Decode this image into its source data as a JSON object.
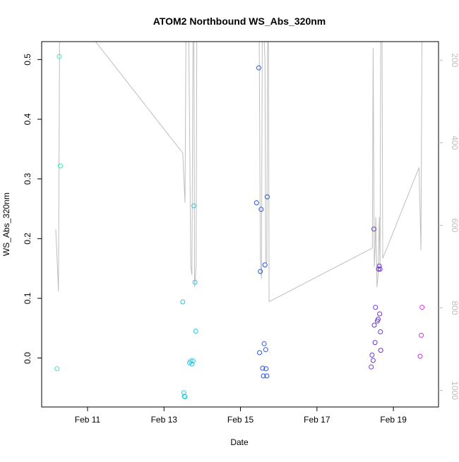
{
  "chart_data": {
    "type": "scatter",
    "title": "ATOM2 Northbound WS_Abs_320nm",
    "xlabel": "Date",
    "ylabel": "WS_Abs_320nm",
    "x_unit": "days",
    "xlim": [
      9.8,
      20.18
    ],
    "ylim": [
      -0.082,
      0.53
    ],
    "y2lim": [
      1040,
      155
    ],
    "grid": false,
    "legend": "none",
    "x_ticks": [
      {
        "value": 11,
        "label": "Feb 11"
      },
      {
        "value": 13,
        "label": "Feb 13"
      },
      {
        "value": 15,
        "label": "Feb 15"
      },
      {
        "value": 17,
        "label": "Feb 17"
      },
      {
        "value": 19,
        "label": "Feb 19"
      }
    ],
    "y_ticks": [
      {
        "value": 0.0,
        "label": "0.0"
      },
      {
        "value": 0.1,
        "label": "0.1"
      },
      {
        "value": 0.2,
        "label": "0.2"
      },
      {
        "value": 0.3,
        "label": "0.3"
      },
      {
        "value": 0.4,
        "label": "0.4"
      },
      {
        "value": 0.5,
        "label": "0.5"
      }
    ],
    "y2_ticks": [
      {
        "value": 200,
        "label": "200"
      },
      {
        "value": 400,
        "label": "400"
      },
      {
        "value": 600,
        "label": "600"
      },
      {
        "value": 800,
        "label": "800"
      },
      {
        "value": 1000,
        "label": "1000"
      }
    ],
    "colors": {
      "axis": "#000000",
      "secondary_axis": "#bebebe",
      "line": "#bebebe"
    },
    "series": [
      {
        "type": "scatter",
        "points": [
          {
            "x": 10.2,
            "y": -0.018,
            "color": "#3ee8b0"
          },
          {
            "x": 10.26,
            "y": 0.505,
            "color": "#3ee8b0"
          },
          {
            "x": 10.29,
            "y": 0.322,
            "color": "#3ee8b0"
          },
          {
            "x": 13.49,
            "y": 0.094,
            "color": "#2ec6e6"
          },
          {
            "x": 13.52,
            "y": -0.058,
            "color": "#2ec6e6"
          },
          {
            "x": 13.53,
            "y": -0.064,
            "color": "#2ec6e6"
          },
          {
            "x": 13.55,
            "y": -0.065,
            "color": "#2ec6e6"
          },
          {
            "x": 13.67,
            "y": -0.008,
            "color": "#2ec6e6"
          },
          {
            "x": 13.7,
            "y": -0.005,
            "color": "#2ec6e6"
          },
          {
            "x": 13.73,
            "y": -0.01,
            "color": "#2ec6e6"
          },
          {
            "x": 13.76,
            "y": -0.005,
            "color": "#2ec6e6"
          },
          {
            "x": 13.78,
            "y": 0.255,
            "color": "#2ec6e6"
          },
          {
            "x": 13.81,
            "y": 0.127,
            "color": "#2ec6e6"
          },
          {
            "x": 13.83,
            "y": 0.045,
            "color": "#2ec6e6"
          },
          {
            "x": 15.42,
            "y": 0.26,
            "color": "#2a55e0"
          },
          {
            "x": 15.48,
            "y": 0.486,
            "color": "#2a55e0"
          },
          {
            "x": 15.5,
            "y": 0.009,
            "color": "#2a55e0"
          },
          {
            "x": 15.52,
            "y": 0.145,
            "color": "#2a55e0"
          },
          {
            "x": 15.54,
            "y": 0.249,
            "color": "#2a55e0"
          },
          {
            "x": 15.58,
            "y": -0.017,
            "color": "#2a55e0"
          },
          {
            "x": 15.6,
            "y": -0.03,
            "color": "#2a55e0"
          },
          {
            "x": 15.62,
            "y": 0.024,
            "color": "#2a55e0"
          },
          {
            "x": 15.64,
            "y": 0.156,
            "color": "#2a55e0"
          },
          {
            "x": 15.66,
            "y": 0.014,
            "color": "#2a55e0"
          },
          {
            "x": 15.67,
            "y": -0.018,
            "color": "#2a55e0"
          },
          {
            "x": 15.69,
            "y": -0.03,
            "color": "#2a55e0"
          },
          {
            "x": 15.7,
            "y": 0.27,
            "color": "#2a55e0"
          },
          {
            "x": 18.42,
            "y": -0.015,
            "color": "#6a35d8"
          },
          {
            "x": 18.44,
            "y": 0.005,
            "color": "#6a35d8"
          },
          {
            "x": 18.47,
            "y": -0.004,
            "color": "#6a35d8"
          },
          {
            "x": 18.49,
            "y": 0.216,
            "color": "#6a35d8"
          },
          {
            "x": 18.5,
            "y": 0.055,
            "color": "#6a35d8"
          },
          {
            "x": 18.52,
            "y": 0.026,
            "color": "#6a35d8"
          },
          {
            "x": 18.53,
            "y": 0.085,
            "color": "#6a35d8"
          },
          {
            "x": 18.58,
            "y": 0.062,
            "color": "#6a35d8"
          },
          {
            "x": 18.6,
            "y": 0.065,
            "color": "#6a35d8"
          },
          {
            "x": 18.61,
            "y": 0.149,
            "color": "#6a35d8"
          },
          {
            "x": 18.63,
            "y": 0.154,
            "color": "#6a35d8"
          },
          {
            "x": 18.64,
            "y": 0.074,
            "color": "#6a35d8"
          },
          {
            "x": 18.65,
            "y": 0.149,
            "color": "#6a35d8"
          },
          {
            "x": 18.66,
            "y": 0.044,
            "color": "#6a35d8"
          },
          {
            "x": 18.67,
            "y": 0.013,
            "color": "#6a35d8"
          },
          {
            "x": 19.7,
            "y": 0.003,
            "color": "#cc33dd"
          },
          {
            "x": 19.73,
            "y": 0.038,
            "color": "#cc33dd"
          },
          {
            "x": 19.75,
            "y": 0.085,
            "color": "#cc33dd"
          }
        ]
      },
      {
        "type": "line",
        "axis": "secondary",
        "color": "#bebebe",
        "points": [
          {
            "x": 10.17,
            "y": 610
          },
          {
            "x": 10.24,
            "y": 760
          },
          {
            "x": 10.27,
            "y": 130
          },
          {
            "x": 10.29,
            "y": 130
          },
          {
            "x": 10.5,
            "y": 130
          },
          {
            "x": 11.0,
            "y": 130
          },
          {
            "x": 13.49,
            "y": 425
          },
          {
            "x": 13.55,
            "y": 545
          },
          {
            "x": 13.58,
            "y": 50
          },
          {
            "x": 13.64,
            "y": 50
          },
          {
            "x": 13.7,
            "y": 700
          },
          {
            "x": 13.73,
            "y": 720
          },
          {
            "x": 13.76,
            "y": 100
          },
          {
            "x": 13.78,
            "y": 100
          },
          {
            "x": 13.8,
            "y": 750
          },
          {
            "x": 13.84,
            "y": 700
          },
          {
            "x": 13.86,
            "y": 100
          },
          {
            "x": 15.42,
            "y": 100
          },
          {
            "x": 15.46,
            "y": 150
          },
          {
            "x": 15.49,
            "y": 150
          },
          {
            "x": 15.52,
            "y": 680
          },
          {
            "x": 15.55,
            "y": 730
          },
          {
            "x": 15.57,
            "y": 150
          },
          {
            "x": 15.6,
            "y": 100
          },
          {
            "x": 15.64,
            "y": 200
          },
          {
            "x": 15.66,
            "y": 690
          },
          {
            "x": 15.69,
            "y": 690
          },
          {
            "x": 15.71,
            "y": 100
          },
          {
            "x": 15.73,
            "y": 100
          },
          {
            "x": 15.75,
            "y": 785
          },
          {
            "x": 18.45,
            "y": 655
          },
          {
            "x": 18.47,
            "y": 170
          },
          {
            "x": 18.5,
            "y": 700
          },
          {
            "x": 18.52,
            "y": 660
          },
          {
            "x": 18.54,
            "y": 580
          },
          {
            "x": 18.57,
            "y": 750
          },
          {
            "x": 18.6,
            "y": 720
          },
          {
            "x": 18.63,
            "y": 580
          },
          {
            "x": 18.65,
            "y": 700
          },
          {
            "x": 18.67,
            "y": 100
          },
          {
            "x": 18.7,
            "y": 100
          },
          {
            "x": 18.72,
            "y": 680
          },
          {
            "x": 19.67,
            "y": 460
          },
          {
            "x": 19.72,
            "y": 660
          },
          {
            "x": 19.75,
            "y": 100
          },
          {
            "x": 19.78,
            "y": 100
          }
        ]
      }
    ]
  }
}
